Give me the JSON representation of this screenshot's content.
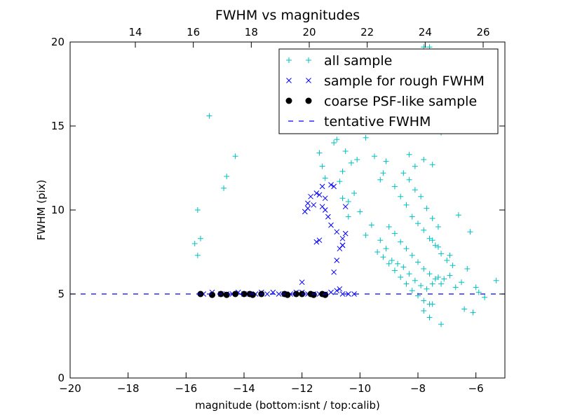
{
  "chart_data": {
    "type": "scatter",
    "title": "FWHM vs magnitudes",
    "xlabel": "magnitude (bottom:isnt / top:calib)",
    "ylabel": "FWHM (pix)",
    "xlim": [
      -20,
      -5
    ],
    "ylim": [
      0,
      20
    ],
    "x_ticks": [
      -20,
      -18,
      -16,
      -14,
      -12,
      -10,
      -8,
      -6
    ],
    "y_ticks": [
      0,
      5,
      10,
      15,
      20
    ],
    "top_axis": {
      "offset": 31.75,
      "ticks": [
        14,
        16,
        18,
        20,
        22,
        24,
        26
      ]
    },
    "legend_position": "top-right",
    "series": [
      {
        "name": "all sample",
        "marker": "plus",
        "color": "#00bfbf",
        "x": [
          -15.5,
          -15.7,
          -15.6,
          -15.6,
          -14.7,
          -14.6,
          -14.3,
          -15.2,
          -10.8,
          -10.5,
          -10.3,
          -10.1,
          -10.7,
          -10.6,
          -10.2,
          -10.4,
          -11.4,
          -11.3,
          -10.9,
          -11.2,
          -10.6,
          -10.4,
          -10.0,
          -9.8,
          -9.6,
          -9.3,
          -9.1,
          -8.9,
          -8.7,
          -8.5,
          -8.3,
          -8.1,
          -7.9,
          -7.7,
          -7.5,
          -7.3,
          -7.1,
          -6.9,
          -6.7,
          -6.5,
          -8.6,
          -8.4,
          -8.2,
          -8.0,
          -7.8,
          -7.6,
          -7.4,
          -7.2,
          -7.0,
          -6.8,
          -9.0,
          -8.8,
          -8.6,
          -8.4,
          -8.2,
          -8.0,
          -7.8,
          -7.6,
          -7.4,
          -7.2,
          -9.4,
          -9.2,
          -9.0,
          -8.8,
          -8.6,
          -8.4,
          -8.2,
          -8.0,
          -7.8,
          -7.6,
          -8.1,
          -7.9,
          -7.7,
          -7.5,
          -7.3,
          -8.5,
          -8.3,
          -7.5,
          -7.3,
          -6.9,
          -6.6,
          -6.3,
          -6.0,
          -5.7,
          -5.3,
          -6.4,
          -6.1,
          -6.2,
          -5.9,
          -7.5,
          -7.2,
          -7.8,
          -7.6,
          -8.0,
          -7.4,
          -7.2,
          -7.8,
          -7.6,
          -7.8,
          -7.5,
          -8.3,
          -8.1,
          -8.8,
          -8.5,
          -9.0,
          -9.2,
          -9.8,
          -9.5,
          -9.3,
          -9.7,
          -9.1,
          -8.8
        ],
        "y": [
          8.3,
          8.0,
          7.3,
          10.0,
          11.3,
          12.0,
          13.2,
          15.6,
          14.2,
          13.5,
          12.8,
          13.0,
          11.7,
          12.3,
          11.0,
          10.5,
          13.4,
          12.6,
          14.0,
          11.9,
          10.7,
          9.6,
          9.9,
          8.5,
          9.1,
          8.2,
          7.7,
          7.0,
          6.8,
          6.6,
          6.2,
          5.8,
          5.5,
          5.3,
          5.6,
          6.0,
          5.9,
          6.1,
          5.4,
          5.7,
          10.8,
          10.3,
          9.6,
          9.2,
          8.8,
          8.3,
          7.9,
          7.4,
          7.0,
          6.7,
          9.0,
          8.6,
          8.1,
          7.7,
          7.3,
          6.9,
          6.5,
          6.2,
          5.9,
          5.6,
          7.5,
          7.2,
          6.8,
          6.4,
          6.0,
          5.6,
          5.2,
          4.9,
          4.6,
          4.4,
          11.2,
          10.8,
          10.1,
          9.5,
          9.0,
          12.2,
          11.8,
          8.2,
          7.8,
          7.3,
          9.7,
          6.5,
          5.4,
          4.8,
          5.8,
          4.1,
          3.9,
          8.7,
          5.1,
          4.4,
          3.2,
          4.0,
          3.6,
          16.0,
          15.0,
          14.6,
          19.7,
          19.7,
          13.0,
          12.7,
          13.3,
          12.6,
          18.4,
          17.8,
          16.4,
          12.2,
          14.3,
          13.2,
          11.8,
          15.0,
          12.9,
          11.4
        ]
      },
      {
        "name": "sample for rough FWHM",
        "marker": "x",
        "color": "#0000ff",
        "x": [
          -15.4,
          -15.1,
          -14.8,
          -14.6,
          -14.4,
          -14.2,
          -14.0,
          -13.8,
          -13.6,
          -13.4,
          -13.2,
          -13.0,
          -12.8,
          -12.6,
          -12.4,
          -12.2,
          -12.0,
          -11.8,
          -11.6,
          -11.4,
          -11.2,
          -11.0,
          -10.8,
          -10.6,
          -10.4,
          -10.2,
          -12.0,
          -11.8,
          -11.7,
          -11.6,
          -11.5,
          -11.4,
          -11.3,
          -11.2,
          -11.0,
          -10.9,
          -10.8,
          -10.7,
          -10.6,
          -10.5,
          -10.6,
          -10.8,
          -11.0,
          -11.2,
          -11.4,
          -11.5,
          -11.3,
          -10.9,
          -11.9,
          -11.8,
          -10.5,
          -10.6,
          -11.1,
          -10.7
        ],
        "y": [
          5.0,
          5.1,
          5.0,
          5.0,
          5.0,
          5.1,
          5.0,
          5.0,
          5.0,
          5.1,
          5.0,
          5.1,
          5.0,
          5.0,
          5.0,
          5.1,
          5.1,
          5.0,
          5.0,
          5.0,
          5.0,
          5.1,
          5.2,
          5.0,
          5.0,
          5.0,
          5.7,
          10.4,
          10.8,
          10.3,
          8.1,
          8.2,
          11.4,
          10.0,
          11.5,
          11.4,
          8.7,
          7.7,
          8.3,
          10.2,
          7.9,
          7.0,
          9.1,
          10.7,
          10.9,
          11.0,
          10.2,
          6.3,
          9.9,
          10.1,
          8.6,
          7.9,
          9.6,
          5.3
        ]
      },
      {
        "name": "coarse PSF-like sample",
        "marker": "circle",
        "color": "#000000",
        "x": [
          -15.5,
          -15.1,
          -14.8,
          -14.6,
          -14.3,
          -14.0,
          -13.8,
          -13.7,
          -13.4,
          -12.6,
          -12.5,
          -12.2,
          -12.0,
          -11.7,
          -11.6,
          -11.3,
          -11.2
        ],
        "y": [
          5.0,
          4.95,
          5.0,
          4.95,
          5.0,
          5.0,
          5.0,
          4.95,
          5.0,
          5.0,
          4.95,
          5.0,
          5.0,
          5.0,
          4.95,
          5.0,
          4.95
        ]
      },
      {
        "name": "tentative FWHM",
        "marker": "dashed-line",
        "color": "#0000ff",
        "y_value": 5
      }
    ]
  }
}
